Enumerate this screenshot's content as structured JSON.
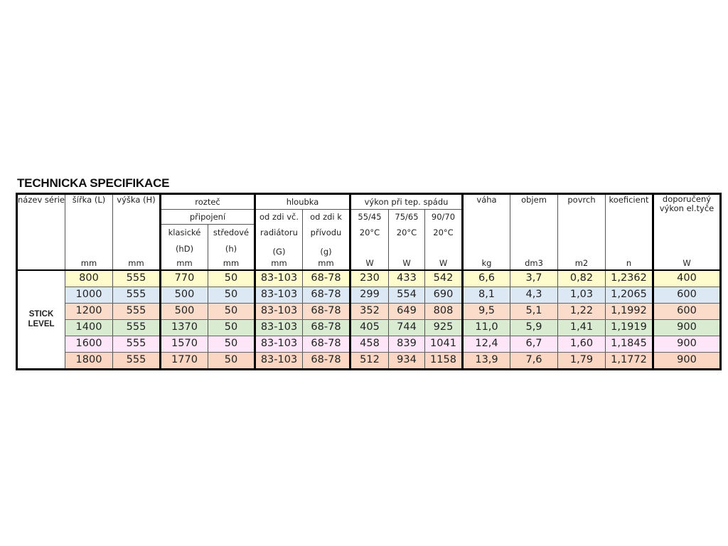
{
  "title": "TECHNICKA SPECIFIKACE",
  "header": {
    "nazev": "název série",
    "sirka": "šířka (L)",
    "vyska": "výška (H)",
    "roztec": "rozteč",
    "pripojeni": "připojení",
    "klasicke": "klasické",
    "stredove": "středové",
    "hD": "(hD)",
    "h": "(h)",
    "hloubka": "hloubka",
    "od_zdi_vc": "od zdi  vč.",
    "radiatoru": "radiátoru",
    "G": "(G)",
    "od_zdi_k": "od zdi  k",
    "privodu": "přívodu",
    "g": "(g)",
    "vykon": "výkon při tep.  spádu",
    "t1": "55/45",
    "t2": "75/65",
    "t3": "90/70",
    "temp": "20°C",
    "vaha": "váha",
    "objem": "objem",
    "povrch": "povrch",
    "koeficient": "koeficient",
    "doporuceny": "doporučený výkon el.tyče",
    "units": [
      "mm",
      "mm",
      "mm",
      "mm",
      "mm",
      "mm",
      "W",
      "W",
      "W",
      "kg",
      "dm3",
      "m2",
      "n",
      "W"
    ]
  },
  "series_name": "STICK LEVEL",
  "row_colors": [
    "#fefbcc",
    "#dde8f5",
    "#fbdcca",
    "#d9ecd2",
    "#fde6f8",
    "#fbd6c2"
  ],
  "rows": [
    [
      "800",
      "555",
      "770",
      "50",
      "83-103",
      "68-78",
      "230",
      "433",
      "542",
      "6,6",
      "3,7",
      "0,82",
      "1,2362",
      "400"
    ],
    [
      "1000",
      "555",
      "500",
      "50",
      "83-103",
      "68-78",
      "299",
      "554",
      "690",
      "8,1",
      "4,3",
      "1,03",
      "1,2065",
      "600"
    ],
    [
      "1200",
      "555",
      "500",
      "50",
      "83-103",
      "68-78",
      "352",
      "649",
      "808",
      "9,5",
      "5,1",
      "1,22",
      "1,1992",
      "600"
    ],
    [
      "1400",
      "555",
      "1370",
      "50",
      "83-103",
      "68-78",
      "405",
      "744",
      "925",
      "11,0",
      "5,9",
      "1,41",
      "1,1919",
      "900"
    ],
    [
      "1600",
      "555",
      "1570",
      "50",
      "83-103",
      "68-78",
      "458",
      "839",
      "1041",
      "12,4",
      "6,7",
      "1,60",
      "1,1845",
      "900"
    ],
    [
      "1800",
      "555",
      "1770",
      "50",
      "83-103",
      "68-78",
      "512",
      "934",
      "1158",
      "13,9",
      "7,6",
      "1,79",
      "1,1772",
      "900"
    ]
  ]
}
